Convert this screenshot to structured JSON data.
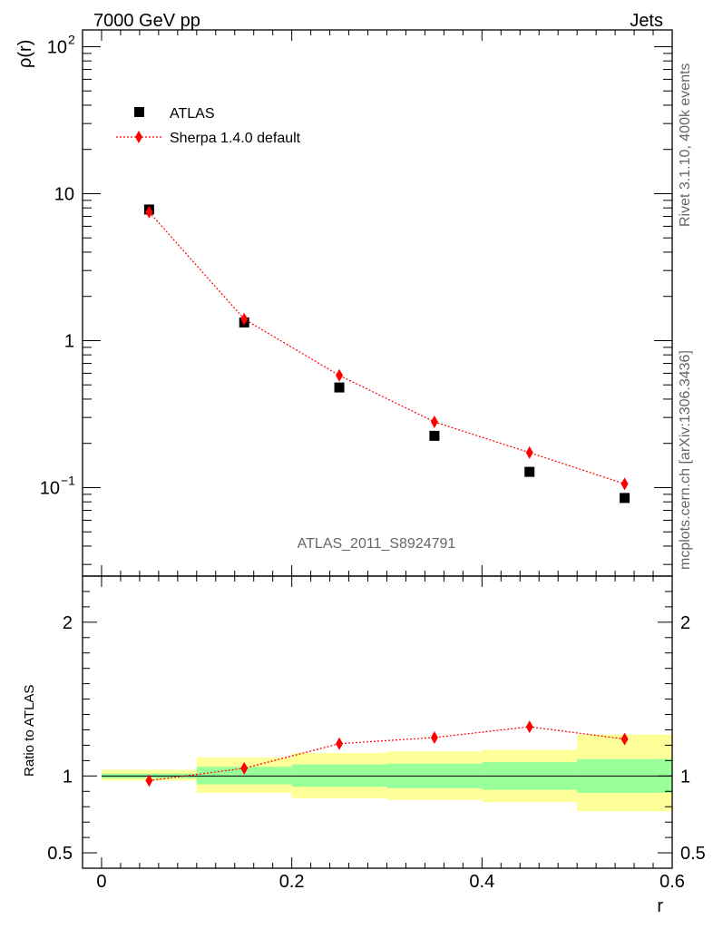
{
  "header": {
    "left": "7000 GeV pp",
    "right": "Jets"
  },
  "side_texts": {
    "rivet": "Rivet 3.1.10,  400k events",
    "mcplots": "mcplots.cern.ch [arXiv:1306.3436]"
  },
  "analysis_label": "ATLAS_2011_S8924791",
  "legend": {
    "data_label": "ATLAS",
    "mc_label": "Sherpa 1.4.0 default"
  },
  "colors": {
    "data": "#000000",
    "mc": "#ff0000",
    "band_inner": "#99ff99",
    "band_outer": "#ffff99"
  },
  "chart_data": {
    "type": "scatter",
    "main": {
      "ylabel": "ρ(r)",
      "yscale": "log",
      "ylim": [
        0.025,
        130
      ],
      "yticks": [
        {
          "value": 0.1,
          "base": "10",
          "exp": "−1"
        },
        {
          "value": 1,
          "base": "1",
          "exp": ""
        },
        {
          "value": 10,
          "base": "10",
          "exp": ""
        },
        {
          "value": 100,
          "base": "10",
          "exp": "2"
        }
      ]
    },
    "ratio": {
      "ylabel": "Ratio to ATLAS",
      "ylim": [
        0.4,
        2.3
      ],
      "yticks": [
        {
          "value": 0.5,
          "label": "0.5"
        },
        {
          "value": 1,
          "label": "1"
        },
        {
          "value": 2,
          "label": "2"
        }
      ]
    },
    "xlabel": "r",
    "xlim": [
      -0.02,
      0.6
    ],
    "xticks": [
      {
        "value": 0,
        "label": "0"
      },
      {
        "value": 0.2,
        "label": "0.2"
      },
      {
        "value": 0.4,
        "label": "0.4"
      },
      {
        "value": 0.6,
        "label": "0.6"
      }
    ],
    "bins": [
      {
        "lo": 0.0,
        "hi": 0.1,
        "x": 0.05,
        "atlas": 7.8,
        "sherpa": 7.5,
        "ratio": 0.97,
        "band_inner": [
          0.985,
          1.015
        ],
        "band_outer": [
          0.97,
          1.04
        ]
      },
      {
        "lo": 0.1,
        "hi": 0.2,
        "x": 0.15,
        "atlas": 1.33,
        "sherpa": 1.4,
        "ratio": 1.05,
        "band_inner": [
          0.945,
          1.06
        ],
        "band_outer": [
          0.89,
          1.12
        ]
      },
      {
        "lo": 0.2,
        "hi": 0.3,
        "x": 0.25,
        "atlas": 0.48,
        "sherpa": 0.58,
        "ratio": 1.21,
        "band_inner": [
          0.93,
          1.075
        ],
        "band_outer": [
          0.855,
          1.15
        ]
      },
      {
        "lo": 0.3,
        "hi": 0.4,
        "x": 0.35,
        "atlas": 0.225,
        "sherpa": 0.28,
        "ratio": 1.25,
        "band_inner": [
          0.92,
          1.08
        ],
        "band_outer": [
          0.845,
          1.16
        ]
      },
      {
        "lo": 0.4,
        "hi": 0.5,
        "x": 0.45,
        "atlas": 0.128,
        "sherpa": 0.173,
        "ratio": 1.32,
        "band_inner": [
          0.91,
          1.09
        ],
        "band_outer": [
          0.83,
          1.17
        ]
      },
      {
        "lo": 0.5,
        "hi": 0.6,
        "x": 0.55,
        "atlas": 0.085,
        "sherpa": 0.106,
        "ratio": 1.24,
        "band_inner": [
          0.89,
          1.11
        ],
        "band_outer": [
          0.77,
          1.27
        ]
      }
    ]
  }
}
